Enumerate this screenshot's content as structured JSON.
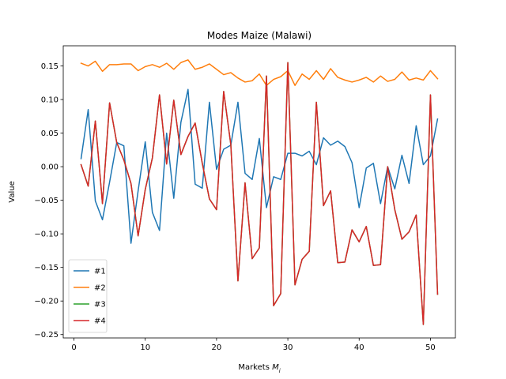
{
  "chart_data": {
    "type": "line",
    "title": "Modes Maize (Malawi)",
    "xlabel": "Markets M",
    "xlabel_sub": "i",
    "ylabel": "Value",
    "xlim": [
      -1.5,
      53.5
    ],
    "ylim": [
      -0.255,
      0.18
    ],
    "xticks": [
      0,
      10,
      20,
      30,
      40,
      50
    ],
    "yticks": [
      -0.25,
      -0.2,
      -0.15,
      -0.1,
      -0.05,
      0.0,
      0.05,
      0.1,
      0.15
    ],
    "ytick_labels": [
      "−0.25",
      "−0.20",
      "−0.15",
      "−0.10",
      "−0.05",
      "0.00",
      "0.05",
      "0.10",
      "0.15"
    ],
    "grid": false,
    "legend_position": "lower-left",
    "x": [
      1,
      2,
      3,
      4,
      5,
      6,
      7,
      8,
      9,
      10,
      11,
      12,
      13,
      14,
      15,
      16,
      17,
      18,
      19,
      20,
      21,
      22,
      23,
      24,
      25,
      26,
      27,
      28,
      29,
      30,
      31,
      32,
      33,
      34,
      35,
      36,
      37,
      38,
      39,
      40,
      41,
      42,
      43,
      44,
      45,
      46,
      47,
      48,
      49,
      50,
      51
    ],
    "series": [
      {
        "name": "#1",
        "color": "#1f77b4",
        "values": [
          0.012,
          0.085,
          -0.051,
          -0.079,
          -0.023,
          0.036,
          0.031,
          -0.114,
          -0.036,
          0.037,
          -0.068,
          -0.095,
          0.05,
          -0.047,
          0.066,
          0.115,
          -0.026,
          -0.032,
          0.096,
          -0.004,
          0.026,
          0.032,
          0.096,
          -0.01,
          -0.019,
          0.042,
          -0.061,
          -0.015,
          -0.019,
          0.02,
          0.02,
          0.016,
          0.023,
          0.003,
          0.043,
          0.032,
          0.038,
          0.03,
          0.006,
          -0.061,
          -0.002,
          0.005,
          -0.055,
          0.0,
          -0.033,
          0.017,
          -0.025,
          0.061,
          0.003,
          0.016,
          0.071
        ]
      },
      {
        "name": "#2",
        "color": "#ff7f0e",
        "values": [
          0.154,
          0.15,
          0.157,
          0.142,
          0.152,
          0.152,
          0.153,
          0.153,
          0.143,
          0.149,
          0.152,
          0.148,
          0.154,
          0.145,
          0.155,
          0.159,
          0.145,
          0.148,
          0.153,
          0.145,
          0.137,
          0.14,
          0.132,
          0.126,
          0.128,
          0.138,
          0.121,
          0.13,
          0.134,
          0.143,
          0.121,
          0.138,
          0.13,
          0.143,
          0.13,
          0.146,
          0.133,
          0.129,
          0.126,
          0.129,
          0.133,
          0.126,
          0.135,
          0.127,
          0.13,
          0.141,
          0.129,
          0.132,
          0.129,
          0.143,
          0.131
        ]
      },
      {
        "name": "#3",
        "color": "#2ca02c",
        "values": [
          0.003,
          -0.029,
          0.068,
          -0.055,
          0.095,
          0.036,
          0.01,
          -0.025,
          -0.103,
          -0.034,
          0.013,
          0.107,
          0.004,
          0.099,
          0.018,
          0.045,
          0.065,
          0.005,
          -0.048,
          -0.064,
          0.112,
          0.033,
          -0.17,
          -0.024,
          -0.137,
          -0.121,
          0.135,
          -0.207,
          -0.189,
          0.155,
          -0.176,
          -0.138,
          -0.126,
          0.096,
          -0.058,
          -0.036,
          -0.143,
          -0.142,
          -0.094,
          -0.112,
          -0.089,
          -0.147,
          -0.146,
          0.0,
          -0.064,
          -0.108,
          -0.097,
          -0.072,
          -0.235,
          0.107,
          -0.19
        ]
      },
      {
        "name": "#4",
        "color": "#d62728",
        "values": [
          0.003,
          -0.029,
          0.068,
          -0.055,
          0.095,
          0.036,
          0.01,
          -0.025,
          -0.103,
          -0.034,
          0.013,
          0.107,
          0.004,
          0.099,
          0.018,
          0.045,
          0.065,
          0.005,
          -0.048,
          -0.064,
          0.112,
          0.033,
          -0.17,
          -0.024,
          -0.137,
          -0.121,
          0.135,
          -0.207,
          -0.189,
          0.155,
          -0.176,
          -0.138,
          -0.126,
          0.096,
          -0.058,
          -0.036,
          -0.143,
          -0.142,
          -0.094,
          -0.112,
          -0.089,
          -0.147,
          -0.146,
          0.0,
          -0.064,
          -0.108,
          -0.097,
          -0.072,
          -0.235,
          0.107,
          -0.19
        ]
      }
    ]
  }
}
